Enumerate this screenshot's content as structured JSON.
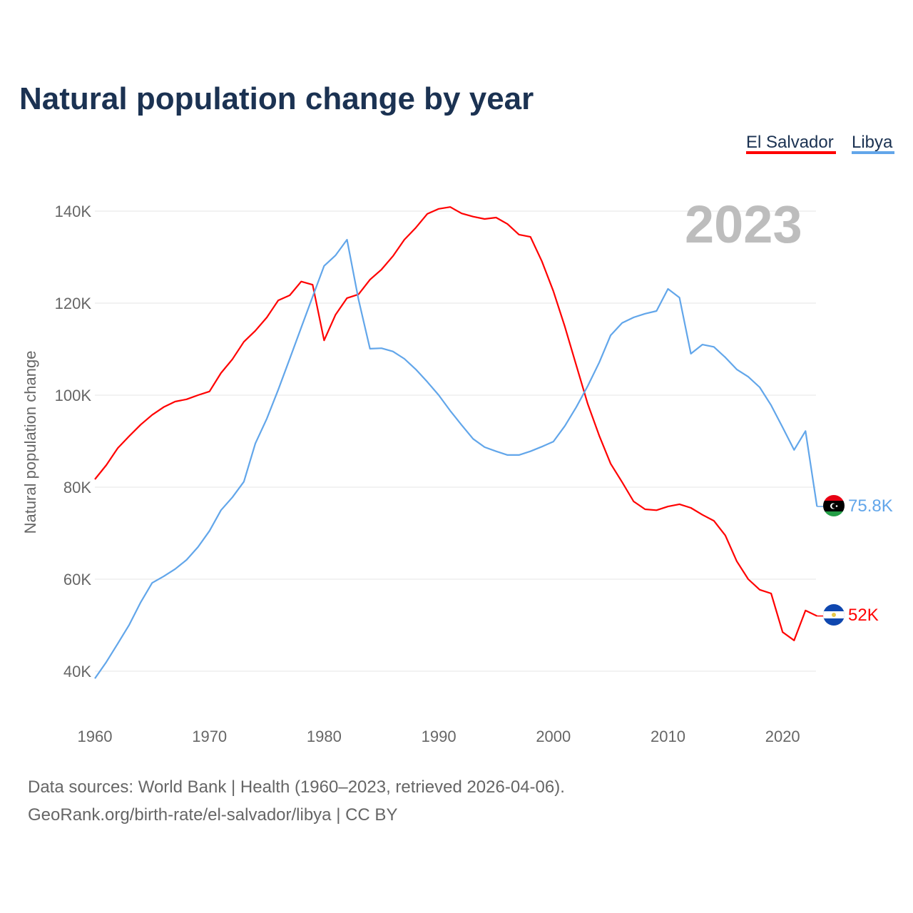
{
  "chart_data": {
    "type": "line",
    "title": "Natural population change by year",
    "xlabel": "",
    "ylabel": "Natural population change",
    "year_label": "2023",
    "xlim": [
      1960,
      2023
    ],
    "ylim": [
      40000,
      140000
    ],
    "x_ticks": [
      "1960",
      "1970",
      "1980",
      "1990",
      "2000",
      "2010",
      "2020"
    ],
    "y_ticks": [
      {
        "value": 40000,
        "label": "40K"
      },
      {
        "value": 60000,
        "label": "60K"
      },
      {
        "value": 80000,
        "label": "80K"
      },
      {
        "value": 100000,
        "label": "100K"
      },
      {
        "value": 120000,
        "label": "120K"
      },
      {
        "value": 140000,
        "label": "140K"
      }
    ],
    "grid": true,
    "legend_position": "top-right",
    "x": [
      1960,
      1961,
      1962,
      1963,
      1964,
      1965,
      1966,
      1967,
      1968,
      1969,
      1970,
      1971,
      1972,
      1973,
      1974,
      1975,
      1976,
      1977,
      1978,
      1979,
      1980,
      1981,
      1982,
      1983,
      1984,
      1985,
      1986,
      1987,
      1988,
      1989,
      1990,
      1991,
      1992,
      1993,
      1994,
      1995,
      1996,
      1997,
      1998,
      1999,
      2000,
      2001,
      2002,
      2003,
      2004,
      2005,
      2006,
      2007,
      2008,
      2009,
      2010,
      2011,
      2012,
      2013,
      2014,
      2015,
      2016,
      2017,
      2018,
      2019,
      2020,
      2021,
      2022,
      2023
    ],
    "series": [
      {
        "name": "El Salvador",
        "color": "#ff0000",
        "end_label": "52K",
        "values": [
          81700,
          84800,
          88500,
          91100,
          93600,
          95700,
          97400,
          98600,
          99100,
          100000,
          100800,
          104800,
          107800,
          111600,
          114000,
          116900,
          120600,
          121700,
          124700,
          124000,
          111900,
          117500,
          121100,
          121900,
          125100,
          127300,
          130200,
          133800,
          136400,
          139400,
          140500,
          140900,
          139500,
          138800,
          138300,
          138600,
          137200,
          134900,
          134400,
          129100,
          122600,
          114900,
          106500,
          98100,
          91200,
          85100,
          81100,
          76900,
          75200,
          75000,
          75800,
          76300,
          75500,
          74000,
          72700,
          69500,
          63900,
          60000,
          57700,
          56900,
          48500,
          46700,
          53200,
          52000
        ]
      },
      {
        "name": "Libya",
        "color": "#62a6ea",
        "end_label": "75.8K",
        "values": [
          38400,
          42000,
          46000,
          50100,
          55000,
          59200,
          60600,
          62200,
          64200,
          67000,
          70500,
          75000,
          77800,
          81200,
          89500,
          94900,
          101200,
          107900,
          114700,
          121400,
          128100,
          130400,
          133800,
          120800,
          110100,
          110200,
          109500,
          107900,
          105600,
          102900,
          100000,
          96600,
          93500,
          90500,
          88700,
          87800,
          87000,
          87000,
          87800,
          88800,
          89900,
          93300,
          97400,
          102000,
          107100,
          113000,
          115700,
          116900,
          117700,
          118300,
          123100,
          121200,
          109000,
          111000,
          110500,
          108200,
          105600,
          104000,
          101700,
          97800,
          93000,
          88100,
          92200,
          75800
        ]
      }
    ]
  },
  "footer": {
    "line1": "Data sources: World Bank | Health (1960–2023, retrieved 2026-04-06).",
    "line2": "GeoRank.org/birth-rate/el-salvador/libya | CC BY"
  }
}
